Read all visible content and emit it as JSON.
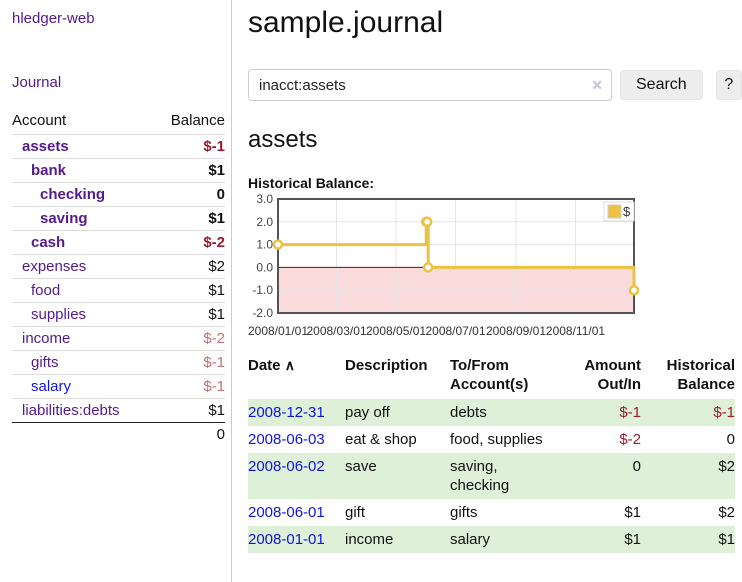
{
  "colors": {
    "link_purple": "#551a8b",
    "link_blue": "#1114dd",
    "negative": "#9e1b2e",
    "negative_muted": "#bf7273",
    "stripe_green": "#def0d8"
  },
  "icons": {
    "clear_search": "✕",
    "sort_ascending": "∧"
  },
  "sidebar": {
    "app_title": "hledger-web",
    "journal_link": "Journal",
    "accounts_table": {
      "headers": {
        "account": "Account",
        "balance": "Balance"
      },
      "rows": [
        {
          "account": "assets",
          "balance": "$-1",
          "level": 1,
          "bold": true,
          "balance_style": "negative",
          "link_style": "purple"
        },
        {
          "account": "bank",
          "balance": "$1",
          "level": 2,
          "bold": true,
          "balance_style": "normal",
          "link_style": "purple"
        },
        {
          "account": "checking",
          "balance": "0",
          "level": 3,
          "bold": true,
          "balance_style": "normal",
          "link_style": "purple"
        },
        {
          "account": "saving",
          "balance": "$1",
          "level": 3,
          "bold": true,
          "balance_style": "normal",
          "link_style": "purple"
        },
        {
          "account": "cash",
          "balance": "$-2",
          "level": 2,
          "bold": true,
          "balance_style": "negative",
          "link_style": "purple"
        },
        {
          "account": "expenses",
          "balance": "$2",
          "level": 1,
          "bold": false,
          "balance_style": "normal",
          "link_style": "purple"
        },
        {
          "account": "food",
          "balance": "$1",
          "level": 2,
          "bold": false,
          "balance_style": "normal",
          "link_style": "purple"
        },
        {
          "account": "supplies",
          "balance": "$1",
          "level": 2,
          "bold": false,
          "balance_style": "normal",
          "link_style": "purple"
        },
        {
          "account": "income",
          "balance": "$-2",
          "level": 1,
          "bold": false,
          "balance_style": "negative-muted",
          "link_style": "purple"
        },
        {
          "account": "gifts",
          "balance": "$-1",
          "level": 2,
          "bold": false,
          "balance_style": "negative-muted",
          "link_style": "purple"
        },
        {
          "account": "salary",
          "balance": "$-1",
          "level": 2,
          "bold": false,
          "balance_style": "negative-muted",
          "link_style": "blue"
        },
        {
          "account": "liabilities:debts",
          "balance": "$1",
          "level": 1,
          "bold": false,
          "balance_style": "normal",
          "link_style": "purple"
        }
      ],
      "total": "0"
    }
  },
  "main": {
    "title": "sample.journal",
    "search": {
      "value": "inacct:assets",
      "button_label": "Search",
      "help_label": "?"
    },
    "account_heading": "assets",
    "chart_label": "Historical Balance:",
    "register_table": {
      "headers": {
        "date": "Date",
        "description": "Description",
        "accounts": "To/From\nAccount(s)",
        "amount": "Amount\nOut/In",
        "balance": "Historical\nBalance"
      },
      "rows": [
        {
          "date": "2008-12-31",
          "description": "pay off",
          "accounts": "debts",
          "amount": "$-1",
          "balance": "$-1",
          "amount_negative": true,
          "balance_negative": true
        },
        {
          "date": "2008-06-03",
          "description": "eat & shop",
          "accounts": "food, supplies",
          "amount": "$-2",
          "balance": "0",
          "amount_negative": true,
          "balance_negative": false
        },
        {
          "date": "2008-06-02",
          "description": "save",
          "accounts": "saving,\nchecking",
          "amount": "0",
          "balance": "$2",
          "amount_negative": false,
          "balance_negative": false
        },
        {
          "date": "2008-06-01",
          "description": "gift",
          "accounts": "gifts",
          "amount": "$1",
          "balance": "$2",
          "amount_negative": false,
          "balance_negative": false
        },
        {
          "date": "2008-01-01",
          "description": "income",
          "accounts": "salary",
          "amount": "$1",
          "balance": "$1",
          "amount_negative": false,
          "balance_negative": false
        }
      ]
    }
  },
  "chart_data": {
    "type": "line",
    "step": true,
    "title": "Historical Balance of assets",
    "series": [
      {
        "name": "$",
        "color": "#edc240",
        "points": [
          {
            "date": "2008/01/01",
            "day": 0,
            "value": 1
          },
          {
            "date": "2008/06/01",
            "day": 152,
            "value": 2
          },
          {
            "date": "2008/06/02",
            "day": 153,
            "value": 2
          },
          {
            "date": "2008/06/03",
            "day": 154,
            "value": 0
          },
          {
            "date": "2008/12/31",
            "day": 365,
            "value": -1
          }
        ]
      }
    ],
    "x_ticks": [
      {
        "day": 0,
        "label": "2008/01/01"
      },
      {
        "day": 60,
        "label": "2008/03/01"
      },
      {
        "day": 121,
        "label": "2008/05/01"
      },
      {
        "day": 182,
        "label": "2008/07/01"
      },
      {
        "day": 244,
        "label": "2008/09/01"
      },
      {
        "day": 305,
        "label": "2008/11/01"
      }
    ],
    "y_ticks": [
      {
        "value": 3,
        "label": "3.0"
      },
      {
        "value": 2,
        "label": "2.0"
      },
      {
        "value": 1,
        "label": "1.0"
      },
      {
        "value": 0,
        "label": "0.0"
      },
      {
        "value": -1,
        "label": "-1.0"
      },
      {
        "value": -2,
        "label": "-2.0"
      }
    ],
    "ylim": [
      -2,
      3
    ],
    "xlim_days": [
      0,
      365
    ],
    "grid": true,
    "grid_color": "#e5e5e5",
    "border_color": "#545454",
    "negative_region_color": "#f9dbdb",
    "zero_line_color": "#8b0000",
    "legend": {
      "label": "$",
      "position": "top-right"
    }
  }
}
